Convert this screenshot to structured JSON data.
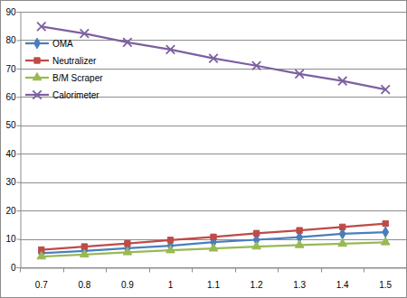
{
  "chart_data": {
    "type": "line",
    "categories": [
      "0.7",
      "0.8",
      "0.9",
      "1",
      "1.1",
      "1.2",
      "1.3",
      "1.4",
      "1.5"
    ],
    "series": [
      {
        "name": "OMA",
        "color": "#4a7ebb",
        "marker": "diamond",
        "values": [
          5.0,
          5.8,
          6.7,
          7.6,
          8.9,
          9.7,
          10.6,
          11.8,
          12.4
        ]
      },
      {
        "name": "Neutralizer",
        "color": "#be4b48",
        "marker": "square",
        "values": [
          6.2,
          7.3,
          8.4,
          9.6,
          10.7,
          12.0,
          13.0,
          14.2,
          15.4
        ]
      },
      {
        "name": "B/M Scraper",
        "color": "#98b954",
        "marker": "triangle",
        "values": [
          3.8,
          4.5,
          5.3,
          6.0,
          6.6,
          7.3,
          7.8,
          8.3,
          8.8
        ]
      },
      {
        "name": "Calorimeter",
        "color": "#7d60a0",
        "marker": "x",
        "values": [
          84.8,
          82.3,
          79.2,
          76.7,
          73.6,
          71.0,
          68.1,
          65.6,
          62.6
        ]
      }
    ],
    "ylim": [
      0,
      90
    ],
    "yticks": [
      0,
      10,
      20,
      30,
      40,
      50,
      60,
      70,
      80,
      90
    ],
    "grid": true,
    "legend": "upper left"
  }
}
